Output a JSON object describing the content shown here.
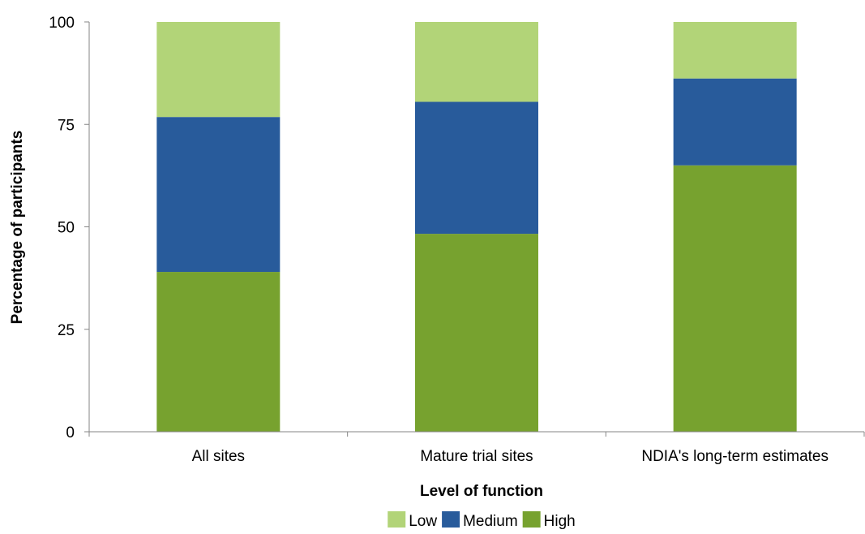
{
  "chart_data": {
    "type": "bar",
    "stacked": true,
    "title": "",
    "xlabel": "Level of function",
    "ylabel": "Percentage of participants",
    "ylim": [
      0,
      100
    ],
    "yticks": [
      0,
      25,
      50,
      75,
      100
    ],
    "grid": false,
    "legend_position": "bottom",
    "categories": [
      "All sites",
      "Mature trial sites",
      "NDIA's long-term estimates"
    ],
    "series": [
      {
        "name": "High",
        "color": "#77a22f",
        "values": [
          39,
          48.3,
          65
        ]
      },
      {
        "name": "Medium",
        "color": "#285b9b",
        "values": [
          37.8,
          32.2,
          21.2
        ]
      },
      {
        "name": "Low",
        "color": "#b2d478",
        "values": [
          23.2,
          19.5,
          13.8
        ]
      }
    ],
    "legend_order": [
      "Low",
      "Medium",
      "High"
    ]
  }
}
